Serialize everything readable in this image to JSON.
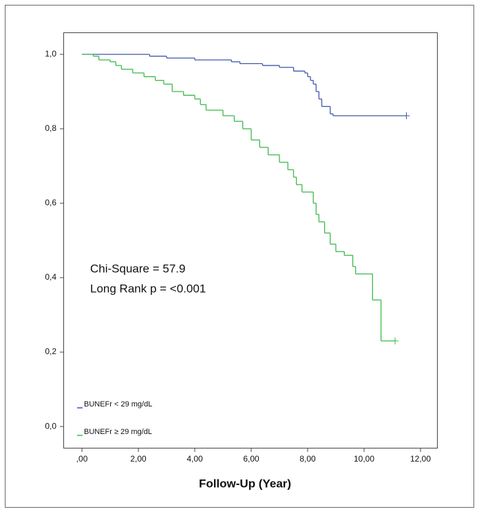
{
  "chart_data": {
    "type": "line",
    "step": true,
    "xlabel": "Follow-Up  (Year)",
    "annotations": [
      "Chi-Square = 57.9",
      "Long Rank p = <0.001"
    ],
    "xlim": [
      -0.66,
      12.61
    ],
    "xticks": [
      {
        "value": 0,
        "label": ",00"
      },
      {
        "value": 2,
        "label": "2,00"
      },
      {
        "value": 4,
        "label": "4,00"
      },
      {
        "value": 6,
        "label": "6,00"
      },
      {
        "value": 8,
        "label": "8,00"
      },
      {
        "value": 10,
        "label": "10,00"
      },
      {
        "value": 12,
        "label": "12,00"
      }
    ],
    "ylim": [
      -0.059,
      1.059
    ],
    "yticks": [
      {
        "value": 0,
        "label": "0,0"
      },
      {
        "value": 0.2,
        "label": "0,2"
      },
      {
        "value": 0.4,
        "label": "0,4"
      },
      {
        "value": 0.6,
        "label": "0,6"
      },
      {
        "value": 0.8,
        "label": "0,8"
      },
      {
        "value": 1,
        "label": "1,0"
      }
    ],
    "series": [
      {
        "name": "BUNEFr < 29 mg/dL",
        "color": "#3e57a8",
        "x": [
          0,
          2.4,
          3.0,
          4.0,
          5.3,
          5.6,
          6.4,
          7.0,
          7.5,
          7.9,
          8.0,
          8.1,
          8.2,
          8.3,
          8.4,
          8.5,
          8.8,
          8.9,
          11.5
        ],
        "values": [
          1.0,
          0.995,
          0.99,
          0.985,
          0.98,
          0.975,
          0.97,
          0.965,
          0.955,
          0.95,
          0.94,
          0.93,
          0.92,
          0.9,
          0.88,
          0.86,
          0.84,
          0.835,
          0.835
        ]
      },
      {
        "name": "BUNEFr ≥ 29 mg/dL",
        "color": "#3cb84a",
        "x": [
          0,
          0.4,
          0.6,
          1.0,
          1.2,
          1.4,
          1.8,
          2.2,
          2.6,
          2.9,
          3.2,
          3.6,
          4.0,
          4.2,
          4.4,
          5.0,
          5.4,
          5.7,
          6.0,
          6.3,
          6.6,
          7.0,
          7.3,
          7.5,
          7.6,
          7.8,
          8.2,
          8.3,
          8.4,
          8.6,
          8.8,
          9.0,
          9.3,
          9.6,
          9.7,
          10.3,
          10.6,
          11.1
        ],
        "values": [
          1.0,
          0.995,
          0.985,
          0.98,
          0.97,
          0.96,
          0.95,
          0.94,
          0.93,
          0.92,
          0.9,
          0.89,
          0.88,
          0.865,
          0.85,
          0.835,
          0.82,
          0.8,
          0.77,
          0.75,
          0.73,
          0.71,
          0.69,
          0.67,
          0.65,
          0.63,
          0.6,
          0.57,
          0.55,
          0.52,
          0.49,
          0.47,
          0.46,
          0.43,
          0.41,
          0.34,
          0.23,
          0.23
        ]
      }
    ]
  }
}
